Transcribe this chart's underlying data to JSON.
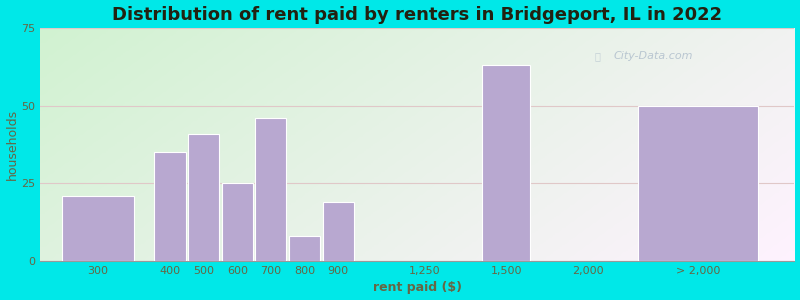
{
  "title": "Distribution of rent paid by renters in Bridgeport, IL in 2022",
  "xlabel": "rent paid ($)",
  "ylabel": "households",
  "bar_color": "#b8a8d0",
  "bar_edge_color": "#ffffff",
  "background_outer": "#00e8e8",
  "categories": [
    "300",
    "400",
    "500",
    "600",
    "700",
    "800",
    "900",
    "1,250",
    "1,500",
    "2,000",
    "> 2,000"
  ],
  "values": [
    21,
    35,
    41,
    25,
    46,
    8,
    19,
    0,
    63,
    0,
    50
  ],
  "ylim": [
    0,
    75
  ],
  "yticks": [
    0,
    25,
    50,
    75
  ],
  "title_fontsize": 13,
  "axis_label_fontsize": 9,
  "tick_fontsize": 8,
  "watermark_text": "City-Data.com",
  "ylabel_fontsize": 9,
  "ylabel_color": "#666644",
  "xlabel_color": "#666644",
  "tick_color": "#666644",
  "title_color": "#222211"
}
